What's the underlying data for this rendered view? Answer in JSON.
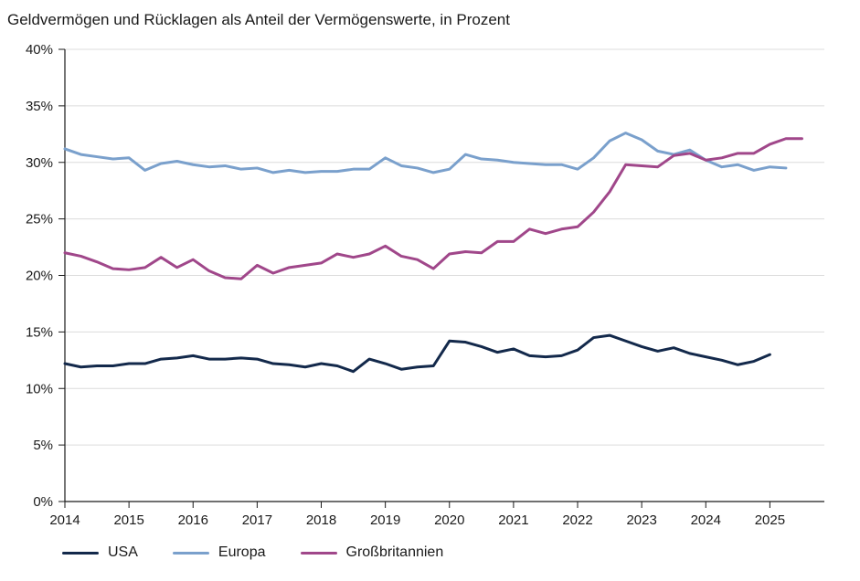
{
  "chart_data": {
    "type": "line",
    "title": "Geldvermögen und Rücklagen als Anteil der Vermögenswerte, in Prozent",
    "xlabel": "",
    "ylabel": "",
    "xlim": [
      2014,
      2025.85
    ],
    "ylim": [
      0,
      40
    ],
    "grid": true,
    "legend_position": "bottom-left",
    "x_ticks": [
      2014,
      2015,
      2016,
      2017,
      2018,
      2019,
      2020,
      2021,
      2022,
      2023,
      2024,
      2025
    ],
    "x_tick_labels": [
      "2014",
      "2015",
      "2016",
      "2017",
      "2018",
      "2019",
      "2020",
      "2021",
      "2022",
      "2023",
      "2024",
      "2025"
    ],
    "y_ticks": [
      0,
      5,
      10,
      15,
      20,
      25,
      30,
      35,
      40
    ],
    "y_tick_labels": [
      "0%",
      "5%",
      "10%",
      "15%",
      "20%",
      "25%",
      "30%",
      "35%",
      "40%"
    ],
    "series": [
      {
        "name": "USA",
        "color": "#13294b",
        "points": [
          [
            2014.0,
            12.2
          ],
          [
            2014.25,
            11.9
          ],
          [
            2014.5,
            12.0
          ],
          [
            2014.75,
            12.0
          ],
          [
            2015.0,
            12.2
          ],
          [
            2015.25,
            12.2
          ],
          [
            2015.5,
            12.6
          ],
          [
            2015.75,
            12.7
          ],
          [
            2016.0,
            12.9
          ],
          [
            2016.25,
            12.6
          ],
          [
            2016.5,
            12.6
          ],
          [
            2016.75,
            12.7
          ],
          [
            2017.0,
            12.6
          ],
          [
            2017.25,
            12.2
          ],
          [
            2017.5,
            12.1
          ],
          [
            2017.75,
            11.9
          ],
          [
            2018.0,
            12.2
          ],
          [
            2018.25,
            12.0
          ],
          [
            2018.5,
            11.5
          ],
          [
            2018.75,
            12.6
          ],
          [
            2019.0,
            12.2
          ],
          [
            2019.25,
            11.7
          ],
          [
            2019.5,
            11.9
          ],
          [
            2019.75,
            12.0
          ],
          [
            2020.0,
            14.2
          ],
          [
            2020.25,
            14.1
          ],
          [
            2020.5,
            13.7
          ],
          [
            2020.75,
            13.2
          ],
          [
            2021.0,
            13.5
          ],
          [
            2021.25,
            12.9
          ],
          [
            2021.5,
            12.8
          ],
          [
            2021.75,
            12.9
          ],
          [
            2022.0,
            13.4
          ],
          [
            2022.25,
            14.5
          ],
          [
            2022.5,
            14.7
          ],
          [
            2022.75,
            14.2
          ],
          [
            2023.0,
            13.7
          ],
          [
            2023.25,
            13.3
          ],
          [
            2023.5,
            13.6
          ],
          [
            2023.75,
            13.1
          ],
          [
            2024.0,
            12.8
          ],
          [
            2024.25,
            12.5
          ],
          [
            2024.5,
            12.1
          ],
          [
            2024.75,
            12.4
          ],
          [
            2025.0,
            13.0
          ]
        ]
      },
      {
        "name": "Europa",
        "color": "#7aa0cc",
        "points": [
          [
            2014.0,
            31.2
          ],
          [
            2014.25,
            30.7
          ],
          [
            2014.5,
            30.5
          ],
          [
            2014.75,
            30.3
          ],
          [
            2015.0,
            30.4
          ],
          [
            2015.25,
            29.3
          ],
          [
            2015.5,
            29.9
          ],
          [
            2015.75,
            30.1
          ],
          [
            2016.0,
            29.8
          ],
          [
            2016.25,
            29.6
          ],
          [
            2016.5,
            29.7
          ],
          [
            2016.75,
            29.4
          ],
          [
            2017.0,
            29.5
          ],
          [
            2017.25,
            29.1
          ],
          [
            2017.5,
            29.3
          ],
          [
            2017.75,
            29.1
          ],
          [
            2018.0,
            29.2
          ],
          [
            2018.25,
            29.2
          ],
          [
            2018.5,
            29.4
          ],
          [
            2018.75,
            29.4
          ],
          [
            2019.0,
            30.4
          ],
          [
            2019.25,
            29.7
          ],
          [
            2019.5,
            29.5
          ],
          [
            2019.75,
            29.1
          ],
          [
            2020.0,
            29.4
          ],
          [
            2020.25,
            30.7
          ],
          [
            2020.5,
            30.3
          ],
          [
            2020.75,
            30.2
          ],
          [
            2021.0,
            30.0
          ],
          [
            2021.25,
            29.9
          ],
          [
            2021.5,
            29.8
          ],
          [
            2021.75,
            29.8
          ],
          [
            2022.0,
            29.4
          ],
          [
            2022.25,
            30.4
          ],
          [
            2022.5,
            31.9
          ],
          [
            2022.75,
            32.6
          ],
          [
            2023.0,
            32.0
          ],
          [
            2023.25,
            31.0
          ],
          [
            2023.5,
            30.7
          ],
          [
            2023.75,
            31.1
          ],
          [
            2024.0,
            30.2
          ],
          [
            2024.25,
            29.6
          ],
          [
            2024.5,
            29.8
          ],
          [
            2024.75,
            29.3
          ],
          [
            2025.0,
            29.6
          ],
          [
            2025.25,
            29.5
          ]
        ]
      },
      {
        "name": "Großbritannien",
        "color": "#a0478a",
        "points": [
          [
            2014.0,
            22.0
          ],
          [
            2014.25,
            21.7
          ],
          [
            2014.5,
            21.2
          ],
          [
            2014.75,
            20.6
          ],
          [
            2015.0,
            20.5
          ],
          [
            2015.25,
            20.7
          ],
          [
            2015.5,
            21.6
          ],
          [
            2015.75,
            20.7
          ],
          [
            2016.0,
            21.4
          ],
          [
            2016.25,
            20.4
          ],
          [
            2016.5,
            19.8
          ],
          [
            2016.75,
            19.7
          ],
          [
            2017.0,
            20.9
          ],
          [
            2017.25,
            20.2
          ],
          [
            2017.5,
            20.7
          ],
          [
            2017.75,
            20.9
          ],
          [
            2018.0,
            21.1
          ],
          [
            2018.25,
            21.9
          ],
          [
            2018.5,
            21.6
          ],
          [
            2018.75,
            21.9
          ],
          [
            2019.0,
            22.6
          ],
          [
            2019.25,
            21.7
          ],
          [
            2019.5,
            21.4
          ],
          [
            2019.75,
            20.6
          ],
          [
            2020.0,
            21.9
          ],
          [
            2020.25,
            22.1
          ],
          [
            2020.5,
            22.0
          ],
          [
            2020.75,
            23.0
          ],
          [
            2021.0,
            23.0
          ],
          [
            2021.25,
            24.1
          ],
          [
            2021.5,
            23.7
          ],
          [
            2021.75,
            24.1
          ],
          [
            2022.0,
            24.3
          ],
          [
            2022.25,
            25.6
          ],
          [
            2022.5,
            27.4
          ],
          [
            2022.75,
            29.8
          ],
          [
            2023.0,
            29.7
          ],
          [
            2023.25,
            29.6
          ],
          [
            2023.5,
            30.6
          ],
          [
            2023.75,
            30.8
          ],
          [
            2024.0,
            30.2
          ],
          [
            2024.25,
            30.4
          ],
          [
            2024.5,
            30.8
          ],
          [
            2024.75,
            30.8
          ],
          [
            2025.0,
            31.6
          ],
          [
            2025.25,
            32.1
          ],
          [
            2025.5,
            32.1
          ]
        ]
      }
    ]
  }
}
